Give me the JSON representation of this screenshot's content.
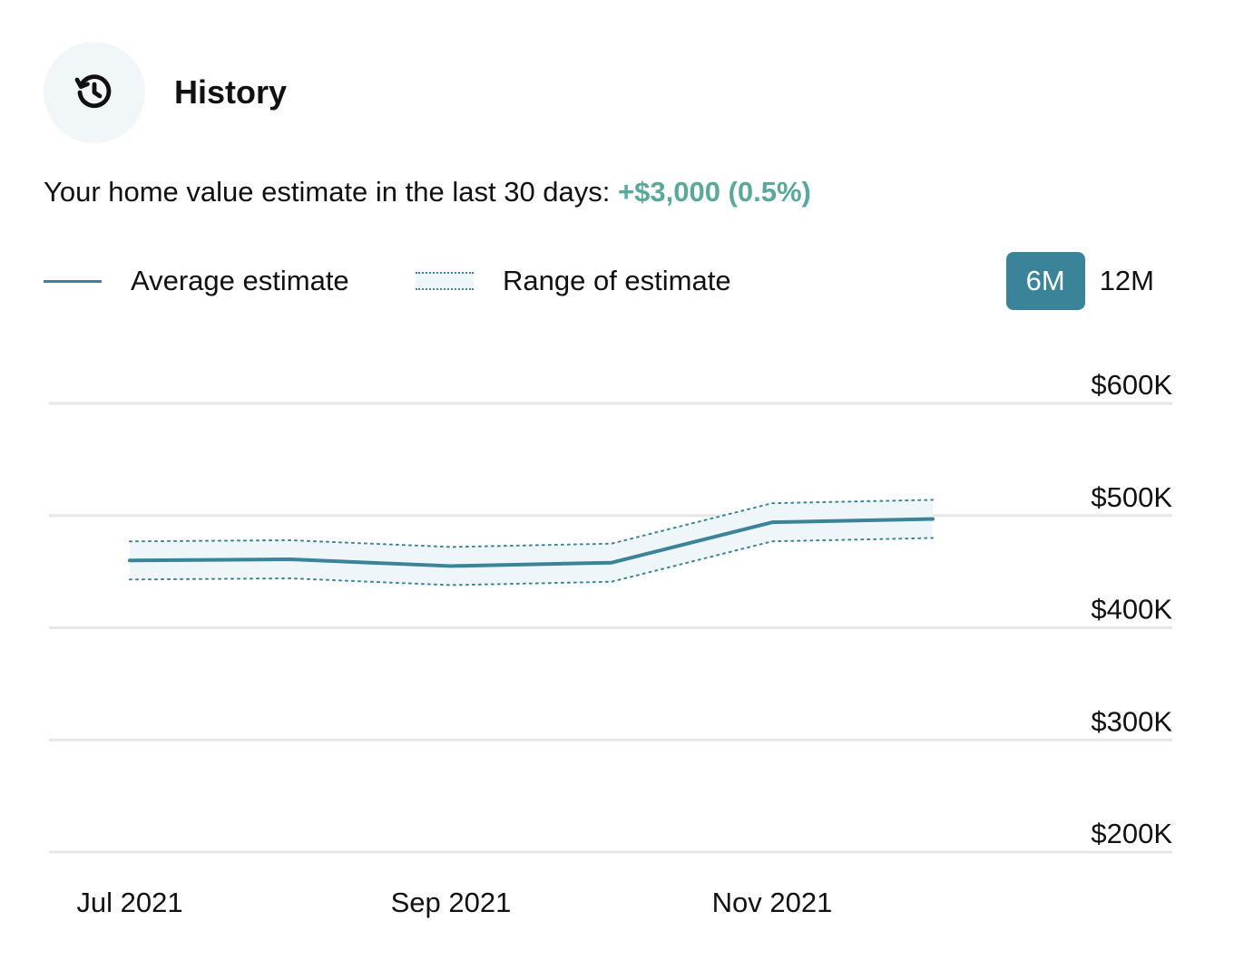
{
  "header": {
    "title": "History",
    "icon": "history-icon"
  },
  "summary": {
    "text": "Your home value estimate in the last 30 days: ",
    "change": "+$3,000 (0.5%)"
  },
  "legend": {
    "average_label": "Average estimate",
    "range_label": "Range of estimate"
  },
  "toggles": [
    {
      "label": "6M",
      "active": true
    },
    {
      "label": "12M",
      "active": false
    }
  ],
  "colors": {
    "accent": "#3a8399",
    "positive": "#5aa89c",
    "range_fill": "#eef6fa",
    "grid": "#e6e6e6"
  },
  "chart_data": {
    "type": "line",
    "x": [
      "2021-07",
      "2021-08",
      "2021-09",
      "2021-10",
      "2021-11",
      "2021-12"
    ],
    "x_tick_labels": [
      "Jul 2021",
      "Sep 2021",
      "Nov 2021"
    ],
    "x_tick_values": [
      "2021-07",
      "2021-09",
      "2021-11"
    ],
    "series": [
      {
        "name": "Average estimate",
        "values": [
          460,
          461,
          455,
          458,
          494,
          497
        ]
      },
      {
        "name": "Range of estimate",
        "kind": "band",
        "upper": [
          477,
          478,
          472,
          475,
          511,
          514
        ],
        "lower": [
          443,
          444,
          438,
          441,
          477,
          480
        ]
      }
    ],
    "y_tick_labels": [
      "$600K",
      "$500K",
      "$400K",
      "$300K",
      "$200K"
    ],
    "y_tick_values": [
      600,
      500,
      400,
      300,
      200
    ],
    "ylim": [
      200,
      600
    ],
    "y_axis_position": "right",
    "grid": true
  }
}
